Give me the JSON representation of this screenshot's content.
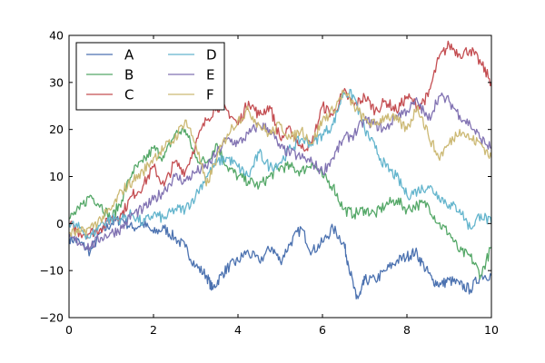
{
  "chart_data": {
    "type": "line",
    "title": "",
    "xlabel": "",
    "ylabel": "",
    "xlim": [
      0,
      10
    ],
    "ylim": [
      -20,
      40
    ],
    "x_ticks": [
      0,
      2,
      4,
      6,
      8,
      10
    ],
    "y_ticks": [
      -20,
      -10,
      0,
      10,
      20,
      30,
      40
    ],
    "x_tick_labels": [
      "0",
      "2",
      "4",
      "6",
      "8",
      "10"
    ],
    "y_tick_labels": [
      "−20",
      "−10",
      "0",
      "10",
      "20",
      "30",
      "40"
    ],
    "grid": false,
    "legend_position": "top-left",
    "legend_columns": 2,
    "series": [
      {
        "name": "A",
        "color": "#4c72b0",
        "points": [
          [
            0,
            -3
          ],
          [
            0.25,
            -4
          ],
          [
            0.5,
            -6
          ],
          [
            0.75,
            -2
          ],
          [
            1,
            0
          ],
          [
            1.25,
            1
          ],
          [
            1.5,
            -1
          ],
          [
            1.75,
            0
          ],
          [
            2,
            -2
          ],
          [
            2.25,
            -1
          ],
          [
            2.5,
            -3
          ],
          [
            2.75,
            -5
          ],
          [
            3,
            -9
          ],
          [
            3.25,
            -11
          ],
          [
            3.4,
            -14
          ],
          [
            3.6,
            -11
          ],
          [
            3.8,
            -9
          ],
          [
            4,
            -8
          ],
          [
            4.2,
            -6
          ],
          [
            4.5,
            -8
          ],
          [
            4.8,
            -5
          ],
          [
            5,
            -8
          ],
          [
            5.25,
            -4
          ],
          [
            5.5,
            -1
          ],
          [
            5.75,
            -6
          ],
          [
            6,
            -4
          ],
          [
            6.25,
            -1
          ],
          [
            6.5,
            -4
          ],
          [
            6.6,
            -8
          ],
          [
            6.8,
            -16
          ],
          [
            6.9,
            -15
          ],
          [
            7,
            -12
          ],
          [
            7.25,
            -12
          ],
          [
            7.5,
            -10
          ],
          [
            7.75,
            -8
          ],
          [
            8,
            -7
          ],
          [
            8.2,
            -6
          ],
          [
            8.4,
            -9
          ],
          [
            8.6,
            -12
          ],
          [
            8.8,
            -13
          ],
          [
            9,
            -12
          ],
          [
            9.25,
            -13
          ],
          [
            9.5,
            -14
          ],
          [
            9.75,
            -11
          ],
          [
            10,
            -11
          ]
        ]
      },
      {
        "name": "B",
        "color": "#55a868",
        "points": [
          [
            0,
            1
          ],
          [
            0.25,
            3
          ],
          [
            0.5,
            6
          ],
          [
            0.75,
            4
          ],
          [
            1,
            1
          ],
          [
            1.25,
            5
          ],
          [
            1.5,
            11
          ],
          [
            1.75,
            13
          ],
          [
            2,
            16
          ],
          [
            2.25,
            14
          ],
          [
            2.5,
            19
          ],
          [
            2.75,
            20
          ],
          [
            3,
            14
          ],
          [
            3.25,
            13
          ],
          [
            3.5,
            17
          ],
          [
            3.75,
            12
          ],
          [
            4,
            10
          ],
          [
            4.25,
            9
          ],
          [
            4.5,
            8
          ],
          [
            4.75,
            10
          ],
          [
            5,
            12
          ],
          [
            5.25,
            12
          ],
          [
            5.5,
            11
          ],
          [
            5.75,
            13
          ],
          [
            6,
            10
          ],
          [
            6.25,
            8
          ],
          [
            6.5,
            3
          ],
          [
            6.75,
            2
          ],
          [
            7,
            3
          ],
          [
            7.25,
            2
          ],
          [
            7.5,
            4
          ],
          [
            7.75,
            5
          ],
          [
            8,
            3
          ],
          [
            8.25,
            4
          ],
          [
            8.5,
            4
          ],
          [
            8.75,
            0
          ],
          [
            9,
            -2
          ],
          [
            9.25,
            -6
          ],
          [
            9.5,
            -7
          ],
          [
            9.75,
            -11
          ],
          [
            10,
            -5
          ]
        ]
      },
      {
        "name": "C",
        "color": "#c44e52",
        "points": [
          [
            0,
            0
          ],
          [
            0.25,
            -2
          ],
          [
            0.5,
            -2
          ],
          [
            0.75,
            -1
          ],
          [
            1,
            1
          ],
          [
            1.25,
            2
          ],
          [
            1.5,
            6
          ],
          [
            1.75,
            8
          ],
          [
            2,
            12
          ],
          [
            2.25,
            8
          ],
          [
            2.5,
            13
          ],
          [
            2.75,
            11
          ],
          [
            3,
            17
          ],
          [
            3.25,
            22
          ],
          [
            3.5,
            25
          ],
          [
            3.75,
            24
          ],
          [
            4,
            21
          ],
          [
            4.25,
            26
          ],
          [
            4.5,
            23
          ],
          [
            4.75,
            25
          ],
          [
            5,
            18
          ],
          [
            5.25,
            20
          ],
          [
            5.5,
            16
          ],
          [
            5.75,
            17
          ],
          [
            6,
            25
          ],
          [
            6.25,
            23
          ],
          [
            6.5,
            28
          ],
          [
            6.75,
            25
          ],
          [
            7,
            27
          ],
          [
            7.25,
            24
          ],
          [
            7.5,
            26
          ],
          [
            7.75,
            24
          ],
          [
            8,
            27
          ],
          [
            8.25,
            25
          ],
          [
            8.5,
            27
          ],
          [
            8.75,
            35
          ],
          [
            9,
            38
          ],
          [
            9.25,
            36
          ],
          [
            9.5,
            37
          ],
          [
            9.75,
            34
          ],
          [
            10,
            30
          ]
        ]
      },
      {
        "name": "D",
        "color": "#64b5cd",
        "points": [
          [
            0,
            0
          ],
          [
            0.25,
            -1
          ],
          [
            0.5,
            -3
          ],
          [
            0.75,
            0
          ],
          [
            1,
            1
          ],
          [
            1.25,
            1
          ],
          [
            1.5,
            2
          ],
          [
            1.75,
            0
          ],
          [
            2,
            2
          ],
          [
            2.25,
            1
          ],
          [
            2.5,
            3
          ],
          [
            2.75,
            3
          ],
          [
            3,
            6
          ],
          [
            3.25,
            10
          ],
          [
            3.5,
            13
          ],
          [
            3.75,
            14
          ],
          [
            4,
            12
          ],
          [
            4.25,
            10
          ],
          [
            4.5,
            15
          ],
          [
            4.75,
            12
          ],
          [
            5,
            13
          ],
          [
            5.25,
            16
          ],
          [
            5.5,
            18
          ],
          [
            5.75,
            17
          ],
          [
            6,
            19
          ],
          [
            6.25,
            21
          ],
          [
            6.5,
            28
          ],
          [
            6.75,
            27
          ],
          [
            7,
            20
          ],
          [
            7.25,
            16
          ],
          [
            7.5,
            12
          ],
          [
            7.75,
            10
          ],
          [
            8,
            6
          ],
          [
            8.25,
            7
          ],
          [
            8.5,
            8
          ],
          [
            8.75,
            6
          ],
          [
            9,
            4
          ],
          [
            9.25,
            3
          ],
          [
            9.5,
            -1
          ],
          [
            9.75,
            2
          ],
          [
            10,
            0
          ]
        ]
      },
      {
        "name": "E",
        "color": "#8172b2",
        "points": [
          [
            0,
            -3
          ],
          [
            0.25,
            -4
          ],
          [
            0.5,
            -5
          ],
          [
            0.75,
            -3
          ],
          [
            1,
            -2
          ],
          [
            1.25,
            -1
          ],
          [
            1.5,
            2
          ],
          [
            1.75,
            3
          ],
          [
            2,
            5
          ],
          [
            2.25,
            7
          ],
          [
            2.5,
            10
          ],
          [
            2.75,
            9
          ],
          [
            3,
            11
          ],
          [
            3.25,
            12
          ],
          [
            3.5,
            15
          ],
          [
            3.75,
            18
          ],
          [
            4,
            17
          ],
          [
            4.25,
            19
          ],
          [
            4.5,
            21
          ],
          [
            4.75,
            20
          ],
          [
            5,
            16
          ],
          [
            5.25,
            15
          ],
          [
            5.5,
            14
          ],
          [
            5.75,
            13
          ],
          [
            6,
            11
          ],
          [
            6.25,
            14
          ],
          [
            6.5,
            18
          ],
          [
            6.75,
            19
          ],
          [
            7,
            22
          ],
          [
            7.25,
            21
          ],
          [
            7.5,
            20
          ],
          [
            7.75,
            23
          ],
          [
            8,
            24
          ],
          [
            8.25,
            26
          ],
          [
            8.5,
            22
          ],
          [
            8.75,
            27
          ],
          [
            9,
            26
          ],
          [
            9.25,
            23
          ],
          [
            9.5,
            21
          ],
          [
            9.75,
            18
          ],
          [
            10,
            16
          ]
        ]
      },
      {
        "name": "F",
        "color": "#ccb974",
        "points": [
          [
            0,
            -2
          ],
          [
            0.25,
            -2
          ],
          [
            0.5,
            -1
          ],
          [
            0.75,
            1
          ],
          [
            1,
            3
          ],
          [
            1.25,
            7
          ],
          [
            1.5,
            9
          ],
          [
            1.75,
            11
          ],
          [
            2,
            14
          ],
          [
            2.25,
            16
          ],
          [
            2.5,
            18
          ],
          [
            2.75,
            22
          ],
          [
            3,
            17
          ],
          [
            3.25,
            8
          ],
          [
            3.5,
            14
          ],
          [
            3.75,
            19
          ],
          [
            4,
            22
          ],
          [
            4.25,
            24
          ],
          [
            4.5,
            21
          ],
          [
            4.75,
            19
          ],
          [
            5,
            21
          ],
          [
            5.25,
            18
          ],
          [
            5.5,
            20
          ],
          [
            5.75,
            17
          ],
          [
            6,
            22
          ],
          [
            6.25,
            24
          ],
          [
            6.5,
            28
          ],
          [
            6.75,
            25
          ],
          [
            7,
            22
          ],
          [
            7.25,
            21
          ],
          [
            7.5,
            23
          ],
          [
            7.75,
            22
          ],
          [
            8,
            20
          ],
          [
            8.25,
            25
          ],
          [
            8.5,
            19
          ],
          [
            8.75,
            14
          ],
          [
            9,
            17
          ],
          [
            9.25,
            20
          ],
          [
            9.5,
            18
          ],
          [
            9.75,
            17
          ],
          [
            10,
            14
          ]
        ]
      }
    ]
  }
}
